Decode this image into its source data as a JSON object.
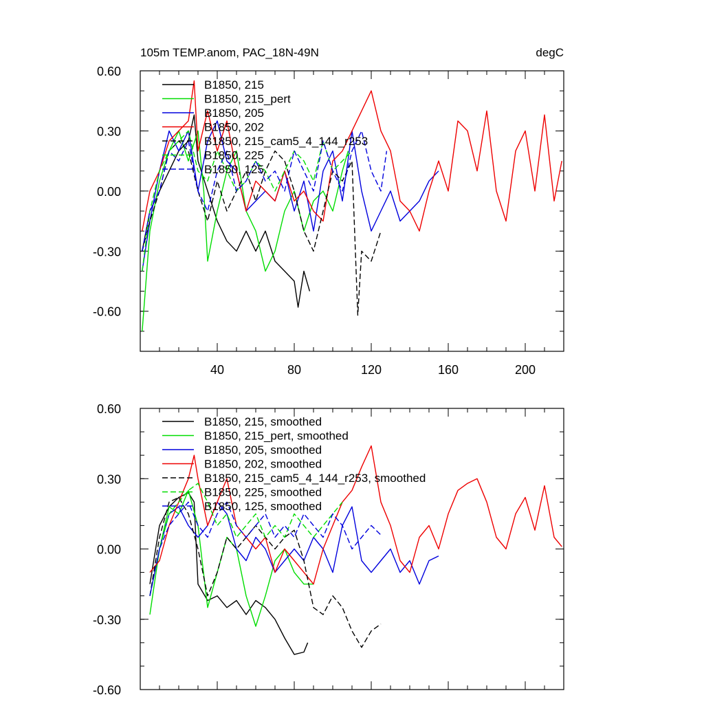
{
  "chart_data": [
    {
      "type": "line",
      "title_left": "105m TEMP.anom, PAC_18N-49N",
      "title_right": "degC",
      "xlim": [
        0,
        220
      ],
      "ylim": [
        -0.8,
        0.6
      ],
      "x_ticks": [
        40,
        80,
        120,
        160,
        200
      ],
      "x_tick_labels": [
        "40",
        "80",
        "120",
        "160",
        "200"
      ],
      "y_ticks": [
        0.6,
        0.3,
        0.0,
        -0.3,
        -0.6
      ],
      "y_tick_labels": [
        "0.60",
        "0.30",
        "0.00",
        "-0.30",
        "-0.60"
      ],
      "legend_position": "top-left",
      "series": [
        {
          "name": "B1850, 215",
          "color": "#000000",
          "dash": "solid",
          "x": [
            1,
            5,
            10,
            15,
            20,
            25,
            28,
            30,
            35,
            40,
            45,
            50,
            55,
            60,
            65,
            70,
            75,
            80,
            82,
            85,
            88
          ],
          "y": [
            -0.3,
            -0.1,
            0.0,
            0.1,
            0.2,
            0.25,
            0.38,
            0.15,
            0.0,
            -0.15,
            -0.25,
            -0.3,
            -0.2,
            -0.3,
            -0.2,
            -0.35,
            -0.4,
            -0.45,
            -0.58,
            -0.4,
            -0.5
          ]
        },
        {
          "name": "B1850, 215_pert",
          "color": "#00dd00",
          "dash": "solid",
          "x": [
            1,
            5,
            10,
            15,
            20,
            25,
            30,
            33,
            35,
            40,
            45,
            50,
            55,
            60,
            65,
            70,
            75,
            80,
            85,
            90,
            95,
            100,
            105,
            108
          ],
          "y": [
            -0.7,
            -0.2,
            0.05,
            0.2,
            0.3,
            0.15,
            0.3,
            0.0,
            -0.35,
            -0.1,
            0.1,
            0.2,
            -0.1,
            -0.2,
            -0.4,
            -0.3,
            -0.1,
            0.0,
            -0.2,
            -0.05,
            0.0,
            -0.1,
            0.1,
            0.2
          ]
        },
        {
          "name": "B1850, 205",
          "color": "#0000dd",
          "dash": "solid",
          "x": [
            1,
            5,
            10,
            15,
            20,
            25,
            30,
            35,
            40,
            45,
            50,
            55,
            60,
            65,
            70,
            75,
            80,
            85,
            90,
            95,
            100,
            105,
            110,
            115,
            120,
            125,
            130,
            135,
            140,
            145,
            150,
            155
          ],
          "y": [
            -0.4,
            -0.15,
            0.1,
            0.3,
            0.2,
            0.3,
            0.0,
            0.25,
            0.35,
            0.15,
            0.1,
            -0.1,
            -0.05,
            0.0,
            -0.05,
            0.1,
            -0.1,
            0.05,
            -0.2,
            0.1,
            0.2,
            -0.05,
            0.3,
            0.0,
            -0.2,
            -0.1,
            0.0,
            -0.15,
            -0.1,
            -0.05,
            0.05,
            0.1
          ]
        },
        {
          "name": "B1850, 202",
          "color": "#ee0000",
          "dash": "solid",
          "x": [
            1,
            5,
            10,
            15,
            20,
            25,
            28,
            30,
            35,
            40,
            45,
            50,
            55,
            60,
            65,
            70,
            75,
            80,
            85,
            90,
            95,
            100,
            105,
            110,
            115,
            120,
            125,
            130,
            135,
            140,
            145,
            150,
            155,
            160,
            165,
            170,
            175,
            180,
            185,
            190,
            195,
            200,
            205,
            210,
            215,
            219
          ],
          "y": [
            -0.2,
            0.0,
            0.1,
            0.25,
            0.3,
            0.35,
            0.55,
            0.2,
            0.4,
            0.2,
            0.35,
            0.1,
            -0.1,
            0.05,
            0.0,
            -0.05,
            0.1,
            -0.05,
            0.0,
            -0.1,
            -0.15,
            0.15,
            0.2,
            0.3,
            0.4,
            0.5,
            0.3,
            0.2,
            -0.05,
            -0.1,
            -0.2,
            0.0,
            0.15,
            0.0,
            0.35,
            0.3,
            0.1,
            0.4,
            0.0,
            -0.15,
            0.2,
            0.3,
            0.0,
            0.38,
            -0.05,
            0.15
          ]
        },
        {
          "name": "B1850, 215_cam5_4_144_r253",
          "color": "#000000",
          "dash": "dashed",
          "x": [
            1,
            5,
            10,
            15,
            20,
            25,
            30,
            35,
            40,
            45,
            50,
            55,
            60,
            65,
            70,
            75,
            80,
            85,
            90,
            95,
            100,
            105,
            110,
            113,
            115,
            120,
            125
          ],
          "y": [
            -0.3,
            -0.15,
            0.0,
            0.2,
            0.25,
            0.2,
            0.0,
            -0.15,
            0.05,
            -0.1,
            0.0,
            0.1,
            -0.05,
            0.1,
            0.2,
            0.15,
            0.0,
            -0.2,
            -0.3,
            -0.1,
            0.1,
            0.05,
            0.15,
            -0.62,
            -0.3,
            -0.35,
            -0.2
          ]
        },
        {
          "name": "B1850, 225",
          "color": "#00dd00",
          "dash": "dashed",
          "x": [
            1,
            5,
            10,
            15,
            20,
            25,
            30,
            35,
            40,
            45,
            50,
            55,
            60,
            65,
            70,
            75,
            80,
            85,
            90,
            95,
            100,
            105,
            110
          ],
          "y": [
            -0.4,
            -0.1,
            0.1,
            0.2,
            0.25,
            0.3,
            0.1,
            0.05,
            0.2,
            0.1,
            0.0,
            0.05,
            0.15,
            0.1,
            0.0,
            0.1,
            0.2,
            0.15,
            0.05,
            0.25,
            0.1,
            0.15,
            0.2
          ]
        },
        {
          "name": "B1850, 125",
          "color": "#0000dd",
          "dash": "dashed",
          "x": [
            1,
            5,
            10,
            15,
            20,
            25,
            30,
            35,
            40,
            45,
            50,
            55,
            60,
            65,
            70,
            75,
            80,
            85,
            90,
            95,
            100,
            105,
            110,
            115,
            120,
            125,
            128
          ],
          "y": [
            -0.3,
            -0.1,
            0.0,
            0.2,
            0.15,
            0.25,
            0.0,
            -0.1,
            0.1,
            0.2,
            0.0,
            0.05,
            0.15,
            0.05,
            0.1,
            0.0,
            0.2,
            0.1,
            0.0,
            0.25,
            0.1,
            0.0,
            0.2,
            0.3,
            0.1,
            0.0,
            0.2
          ]
        }
      ]
    },
    {
      "type": "line",
      "xlim": [
        0,
        220
      ],
      "ylim": [
        -0.6,
        0.6
      ],
      "y_ticks": [
        0.6,
        0.3,
        0.0,
        -0.3,
        -0.6
      ],
      "y_tick_labels": [
        "0.60",
        "0.30",
        "0.00",
        "-0.30",
        "-0.60"
      ],
      "x_ticks": [
        40,
        80,
        120,
        160,
        200
      ],
      "legend_position": "top-left",
      "series": [
        {
          "name": "B1850, 215, smoothed",
          "color": "#000000",
          "dash": "solid",
          "x": [
            5,
            10,
            15,
            20,
            25,
            28,
            30,
            35,
            40,
            45,
            50,
            55,
            60,
            65,
            70,
            75,
            80,
            85,
            87
          ],
          "y": [
            -0.15,
            0.1,
            0.18,
            0.22,
            0.24,
            0.2,
            -0.15,
            -0.22,
            -0.2,
            -0.25,
            -0.22,
            -0.28,
            -0.22,
            -0.25,
            -0.3,
            -0.38,
            -0.45,
            -0.44,
            -0.4
          ]
        },
        {
          "name": "B1850, 215_pert, smoothed",
          "color": "#00dd00",
          "dash": "solid",
          "x": [
            5,
            10,
            15,
            20,
            25,
            30,
            35,
            40,
            45,
            50,
            55,
            60,
            65,
            70,
            75,
            80,
            85,
            90
          ],
          "y": [
            -0.28,
            0.0,
            0.18,
            0.15,
            0.25,
            0.1,
            -0.25,
            -0.1,
            0.05,
            0.0,
            -0.2,
            -0.33,
            -0.2,
            -0.05,
            0.0,
            -0.1,
            -0.15,
            -0.15
          ]
        },
        {
          "name": "B1850, 205, smoothed",
          "color": "#0000dd",
          "dash": "solid",
          "x": [
            5,
            10,
            15,
            20,
            25,
            30,
            35,
            40,
            45,
            50,
            55,
            60,
            65,
            70,
            75,
            80,
            85,
            90,
            95,
            100,
            105,
            110,
            115,
            120,
            125,
            130,
            135,
            140,
            145,
            150,
            155
          ],
          "y": [
            -0.2,
            0.0,
            0.15,
            0.18,
            0.1,
            0.05,
            0.1,
            0.2,
            0.15,
            0.0,
            -0.05,
            0.05,
            0.0,
            -0.1,
            -0.05,
            0.0,
            -0.05,
            0.05,
            0.0,
            -0.1,
            0.1,
            0.18,
            -0.05,
            -0.1,
            -0.05,
            0.0,
            -0.1,
            -0.05,
            -0.15,
            -0.05,
            -0.03
          ]
        },
        {
          "name": "B1850, 202, smoothed",
          "color": "#ee0000",
          "dash": "solid",
          "x": [
            5,
            10,
            15,
            20,
            25,
            28,
            30,
            35,
            40,
            45,
            50,
            55,
            60,
            65,
            70,
            75,
            80,
            85,
            90,
            95,
            100,
            105,
            110,
            115,
            120,
            125,
            130,
            135,
            140,
            145,
            150,
            155,
            160,
            165,
            170,
            175,
            180,
            185,
            190,
            195,
            200,
            205,
            210,
            215,
            219
          ],
          "y": [
            -0.1,
            -0.05,
            0.1,
            0.2,
            0.3,
            0.4,
            0.3,
            0.1,
            0.2,
            0.3,
            0.1,
            0.05,
            0.0,
            0.05,
            -0.1,
            0.0,
            -0.05,
            -0.1,
            -0.15,
            0.0,
            0.1,
            0.2,
            0.25,
            0.35,
            0.44,
            0.2,
            0.1,
            -0.05,
            -0.1,
            0.05,
            0.1,
            0.0,
            0.15,
            0.25,
            0.28,
            0.3,
            0.2,
            0.05,
            0.0,
            0.15,
            0.22,
            0.08,
            0.27,
            0.05,
            0.01
          ]
        },
        {
          "name": "B1850, 215_cam5_4_144_r253, smoothed",
          "color": "#000000",
          "dash": "dashed",
          "x": [
            5,
            10,
            15,
            20,
            25,
            30,
            35,
            40,
            45,
            50,
            55,
            60,
            65,
            70,
            75,
            80,
            85,
            90,
            95,
            100,
            105,
            110,
            115,
            120,
            125
          ],
          "y": [
            -0.2,
            0.05,
            0.2,
            0.22,
            0.15,
            0.0,
            -0.2,
            -0.1,
            0.05,
            0.0,
            0.05,
            0.1,
            0.05,
            0.0,
            0.05,
            0.08,
            -0.05,
            -0.25,
            -0.28,
            -0.2,
            -0.25,
            -0.35,
            -0.42,
            -0.35,
            -0.32
          ]
        },
        {
          "name": "B1850, 225, smoothed",
          "color": "#00dd00",
          "dash": "dashed",
          "x": [
            5,
            10,
            15,
            20,
            25,
            30,
            35,
            40,
            45,
            50,
            55,
            60,
            65,
            70,
            75,
            80,
            85,
            90,
            95,
            100,
            105
          ],
          "y": [
            -0.2,
            0.0,
            0.15,
            0.2,
            0.25,
            0.28,
            0.2,
            0.1,
            0.15,
            0.05,
            0.1,
            0.15,
            0.05,
            0.1,
            0.05,
            0.15,
            0.1,
            0.05,
            0.1,
            0.15,
            0.2
          ]
        },
        {
          "name": "B1850, 125, smoothed",
          "color": "#0000dd",
          "dash": "dashed",
          "x": [
            5,
            10,
            15,
            20,
            25,
            30,
            35,
            40,
            45,
            50,
            55,
            60,
            65,
            70,
            75,
            80,
            85,
            90,
            95,
            100,
            105,
            110,
            115,
            120,
            125
          ],
          "y": [
            -0.2,
            0.0,
            0.1,
            0.15,
            0.2,
            0.1,
            0.05,
            0.15,
            0.2,
            0.1,
            0.05,
            0.1,
            0.15,
            0.05,
            0.1,
            0.05,
            0.15,
            0.1,
            0.05,
            0.15,
            0.1,
            0.0,
            0.05,
            0.1,
            0.06
          ]
        }
      ]
    }
  ]
}
